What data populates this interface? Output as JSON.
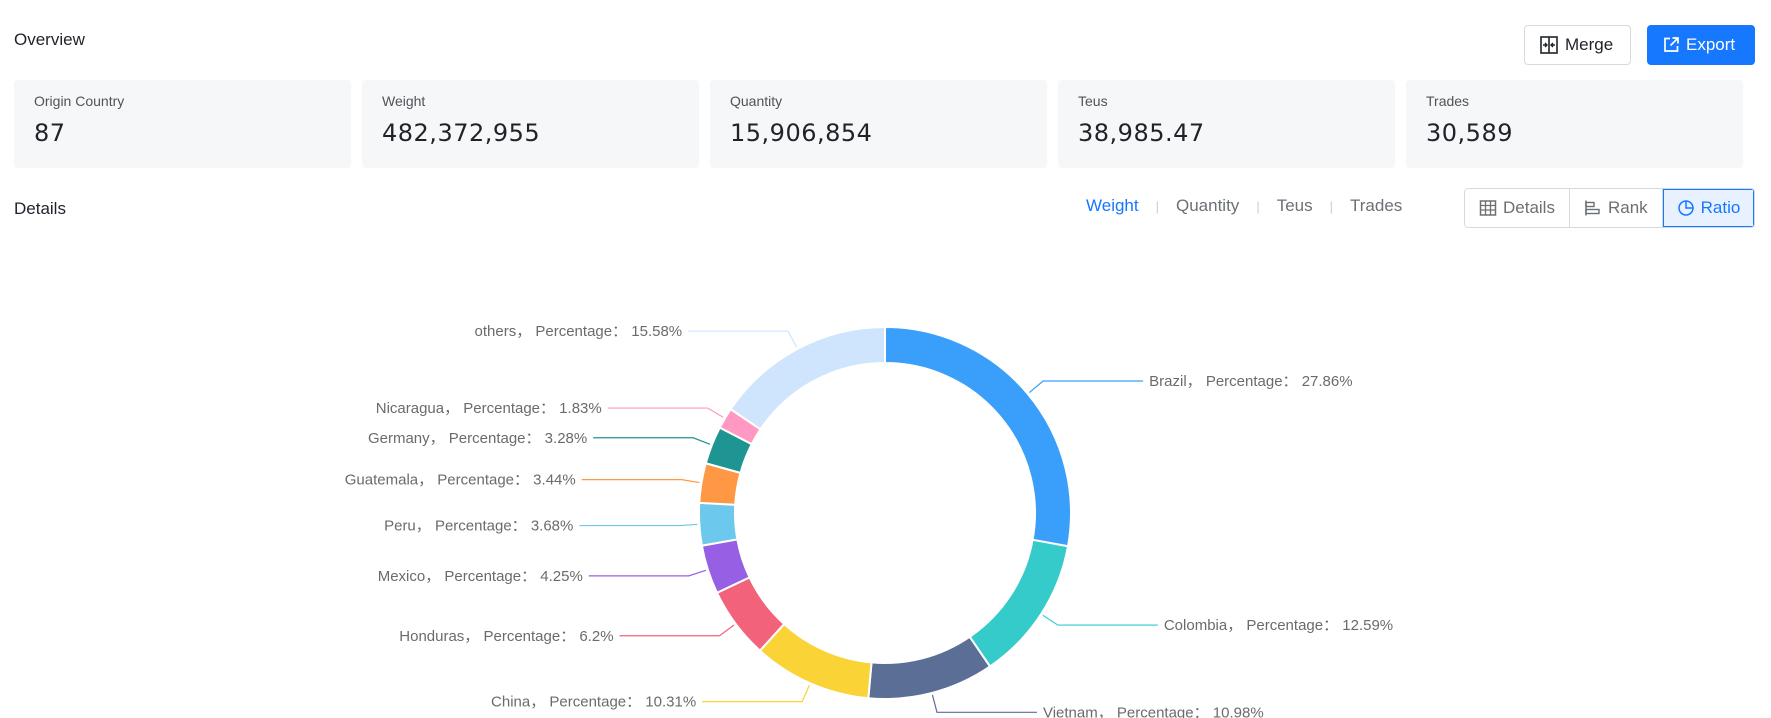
{
  "overview": {
    "title": "Overview",
    "merge_label": "Merge",
    "export_label": "Export"
  },
  "stats": [
    {
      "label": "Origin Country",
      "value": "87"
    },
    {
      "label": "Weight",
      "value": "482,372,955"
    },
    {
      "label": "Quantity",
      "value": "15,906,854"
    },
    {
      "label": "Teus",
      "value": "38,985.47"
    },
    {
      "label": "Trades",
      "value": "30,589"
    }
  ],
  "details": {
    "title": "Details",
    "metric_tabs": [
      "Weight",
      "Quantity",
      "Teus",
      "Trades"
    ],
    "active_metric": "Weight",
    "views": [
      "Details",
      "Rank",
      "Ratio"
    ],
    "active_view": "Ratio"
  },
  "colors": {
    "accent": "#1677ff"
  },
  "chart_data": {
    "type": "pie",
    "variant": "donut",
    "label_prefix": "Percentage：",
    "slices": [
      {
        "name": "Brazil",
        "value": 27.86,
        "label": "27.86%",
        "color": "#3a9ffb"
      },
      {
        "name": "Colombia",
        "value": 12.59,
        "label": "12.59%",
        "color": "#36cbcb"
      },
      {
        "name": "Vietnam",
        "value": 10.98,
        "label": "10.98%",
        "color": "#5b6e96"
      },
      {
        "name": "China",
        "value": 10.31,
        "label": "10.31%",
        "color": "#fad337"
      },
      {
        "name": "Honduras",
        "value": 6.2,
        "label": "6.2%",
        "color": "#f2637b"
      },
      {
        "name": "Mexico",
        "value": 4.25,
        "label": "4.25%",
        "color": "#975fe4"
      },
      {
        "name": "Peru",
        "value": 3.68,
        "label": "3.68%",
        "color": "#6cc8ec"
      },
      {
        "name": "Guatemala",
        "value": 3.44,
        "label": "3.44%",
        "color": "#ff9845"
      },
      {
        "name": "Germany",
        "value": 3.28,
        "label": "3.28%",
        "color": "#1e9493"
      },
      {
        "name": "Nicaragua",
        "value": 1.83,
        "label": "1.83%",
        "color": "#ff99c3"
      },
      {
        "name": "others",
        "value": 15.58,
        "label": "15.58%",
        "color": "#cfe5fd"
      }
    ]
  }
}
